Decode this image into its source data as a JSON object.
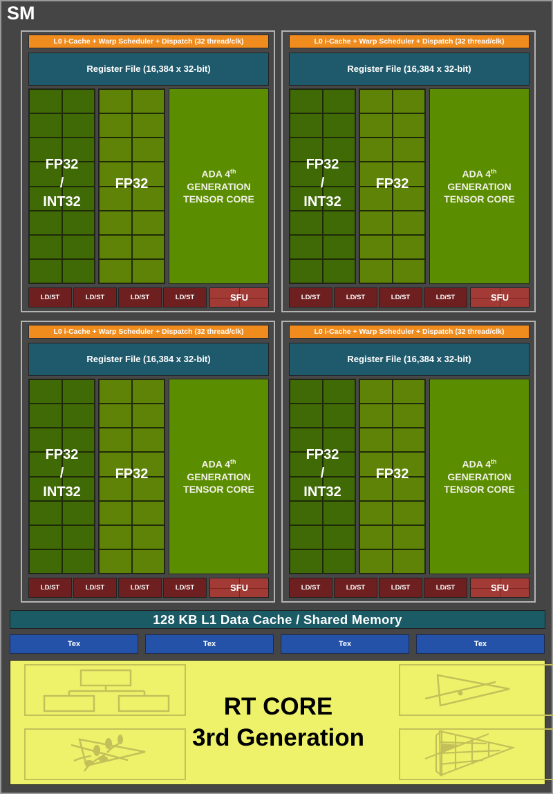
{
  "diagram": {
    "title": "SM",
    "colors": {
      "background": "#454545",
      "scheduler": "#f08c1e",
      "register_file": "#1f5a6c",
      "fp32_int32": "#3f6a06",
      "fp32": "#5f8306",
      "tensor_core": "#5b8d00",
      "ldst": "#6e1f1f",
      "sfu": "#a23a36",
      "l1_cache": "#1b5b66",
      "tex": "#2452a8",
      "rt_core": "#eef26a"
    },
    "partitions": [
      {
        "scheduler": "L0 i-Cache + Warp Scheduler + Dispatch (32 thread/clk)",
        "register_file": "Register File (16,384 x 32-bit)",
        "fp32_int32": {
          "line1": "FP32",
          "line2": "/",
          "line3": "INT32"
        },
        "fp32": "FP32",
        "tensor": {
          "line1": "ADA 4",
          "sup": "th",
          "line2": "GENERATION",
          "line3": "TENSOR CORE"
        },
        "ldst": [
          "LD/ST",
          "LD/ST",
          "LD/ST",
          "LD/ST"
        ],
        "sfu": "SFU"
      },
      {
        "scheduler": "L0 i-Cache + Warp Scheduler + Dispatch (32 thread/clk)",
        "register_file": "Register File (16,384 x 32-bit)",
        "fp32_int32": {
          "line1": "FP32",
          "line2": "/",
          "line3": "INT32"
        },
        "fp32": "FP32",
        "tensor": {
          "line1": "ADA 4",
          "sup": "th",
          "line2": "GENERATION",
          "line3": "TENSOR CORE"
        },
        "ldst": [
          "LD/ST",
          "LD/ST",
          "LD/ST",
          "LD/ST"
        ],
        "sfu": "SFU"
      },
      {
        "scheduler": "L0 i-Cache + Warp Scheduler + Dispatch (32 thread/clk)",
        "register_file": "Register File (16,384 x 32-bit)",
        "fp32_int32": {
          "line1": "FP32",
          "line2": "/",
          "line3": "INT32"
        },
        "fp32": "FP32",
        "tensor": {
          "line1": "ADA 4",
          "sup": "th",
          "line2": "GENERATION",
          "line3": "TENSOR CORE"
        },
        "ldst": [
          "LD/ST",
          "LD/ST",
          "LD/ST",
          "LD/ST"
        ],
        "sfu": "SFU"
      },
      {
        "scheduler": "L0 i-Cache + Warp Scheduler + Dispatch (32 thread/clk)",
        "register_file": "Register File (16,384 x 32-bit)",
        "fp32_int32": {
          "line1": "FP32",
          "line2": "/",
          "line3": "INT32"
        },
        "fp32": "FP32",
        "tensor": {
          "line1": "ADA 4",
          "sup": "th",
          "line2": "GENERATION",
          "line3": "TENSOR CORE"
        },
        "ldst": [
          "LD/ST",
          "LD/ST",
          "LD/ST",
          "LD/ST"
        ],
        "sfu": "SFU"
      }
    ],
    "l1_cache": "128 KB L1 Data Cache / Shared Memory",
    "tex": [
      "Tex",
      "Tex",
      "Tex",
      "Tex"
    ],
    "rt_core": {
      "line1": "RT CORE",
      "line2": "3rd Generation",
      "icons": [
        "bvh-tree-icon",
        "ray-triangle-intersection-icon",
        "alpha-traversal-leaf-icon",
        "micro-mesh-triangle-icon"
      ]
    }
  }
}
